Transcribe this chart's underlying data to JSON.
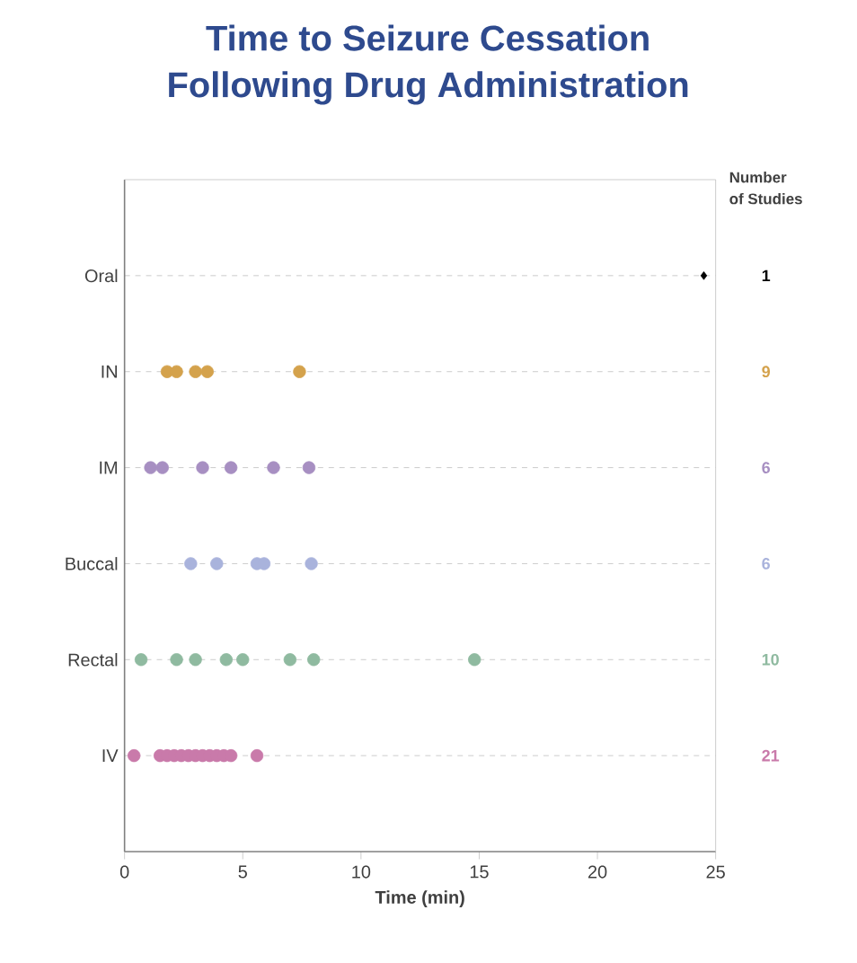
{
  "chart_data": {
    "type": "scatter",
    "title": "Time to Seizure Cessation\nFollowing Drug Administration",
    "xlabel": "Time (min)",
    "orientation": "horizontal",
    "categories": [
      "Oral",
      "IN",
      "IM",
      "Buccal",
      "Rectal",
      "IV"
    ],
    "xlim": [
      0,
      25
    ],
    "xticks": [
      0,
      5,
      10,
      15,
      20,
      25
    ],
    "grid": "y",
    "annotations": [
      "Number\nof Studies"
    ],
    "series": [
      {
        "name": "1",
        "color": "#000000",
        "marker": "diamond",
        "x": [
          "Oral"
        ],
        "values": [
          24.5
        ]
      },
      {
        "name": "9",
        "color": "#d4a24c",
        "marker": "circle",
        "x": [
          "IN",
          "IN",
          "IN",
          "IN",
          "IN"
        ],
        "values": [
          1.8,
          2.2,
          3.0,
          3.5,
          7.4
        ]
      },
      {
        "name": "6",
        "color": "#a78fc2",
        "marker": "circle",
        "x": [
          "IM",
          "IM",
          "IM",
          "IM",
          "IM",
          "IM"
        ],
        "values": [
          1.1,
          1.6,
          3.3,
          4.5,
          6.3,
          7.8
        ]
      },
      {
        "name": "6",
        "color": "#a9b3dc",
        "marker": "circle",
        "x": [
          "Buccal",
          "Buccal",
          "Buccal",
          "Buccal",
          "Buccal"
        ],
        "values": [
          2.8,
          3.9,
          5.6,
          5.9,
          7.9
        ]
      },
      {
        "name": "10",
        "color": "#8fbaa0",
        "marker": "circle",
        "x": [
          "Rectal",
          "Rectal",
          "Rectal",
          "Rectal",
          "Rectal",
          "Rectal",
          "Rectal",
          "Rectal"
        ],
        "values": [
          0.7,
          2.2,
          3.0,
          4.3,
          5.0,
          7.0,
          8.0,
          14.8
        ]
      },
      {
        "name": "21",
        "color": "#c97aaa",
        "marker": "circle",
        "x": [
          "IV",
          "IV",
          "IV",
          "IV",
          "IV",
          "IV",
          "IV",
          "IV",
          "IV",
          "IV",
          "IV",
          "IV",
          "IV"
        ],
        "values": [
          0.4,
          1.5,
          1.8,
          2.1,
          2.4,
          2.7,
          3.0,
          3.3,
          3.6,
          3.9,
          4.2,
          4.5,
          5.6
        ]
      }
    ]
  }
}
